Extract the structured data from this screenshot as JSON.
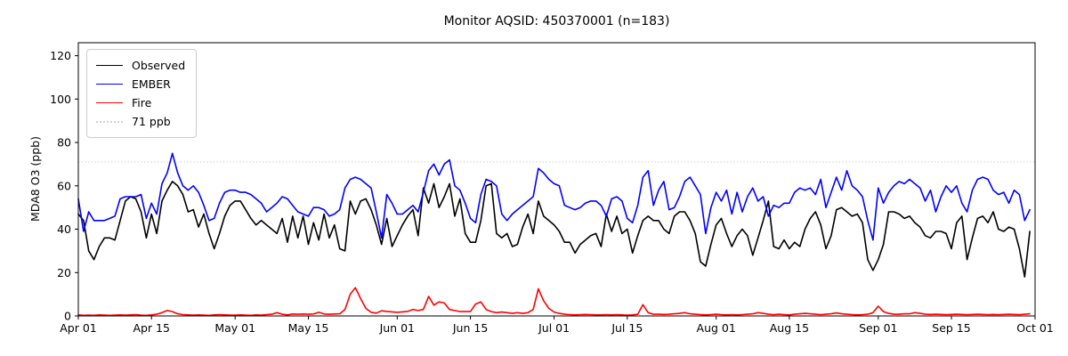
{
  "figure": {
    "title": "Monitor AQSID: 450370001 (n=183)",
    "background_color": "#ffffff",
    "axes_color": "#000000"
  },
  "chart_data": {
    "type": "line",
    "title": "Monitor AQSID: 450370001 (n=183)",
    "xlabel": "",
    "ylabel": "MDA8 O3 (ppb)",
    "ylim": [
      0,
      126
    ],
    "y_ticks": [
      0,
      20,
      40,
      60,
      80,
      100,
      120
    ],
    "x_tick_labels": [
      "Apr 01",
      "Apr 15",
      "May 01",
      "May 15",
      "Jun 01",
      "Jun 15",
      "Jul 01",
      "Jul 15",
      "Aug 01",
      "Aug 15",
      "Sep 01",
      "Sep 15",
      "Oct 01"
    ],
    "x_tick_day_offsets": [
      0,
      14,
      30,
      44,
      61,
      75,
      91,
      105,
      122,
      136,
      153,
      167,
      183
    ],
    "x_total_days": 183,
    "x_start_date": "Apr 01",
    "x_end_date": "Sep 30",
    "x_frequency": "daily",
    "n_points": 183,
    "grid": false,
    "legend_position": "upper left",
    "threshold": {
      "label": "71 ppb",
      "value": 71,
      "color": "#d3d3d3",
      "style": "dotted"
    },
    "legend": [
      {
        "label": "Observed",
        "color": "#000000",
        "style": "solid"
      },
      {
        "label": "EMBER",
        "color": "#0000ff",
        "style": "solid"
      },
      {
        "label": "Fire",
        "color": "#ff0000",
        "style": "solid"
      },
      {
        "label": "71 ppb",
        "color": "#d3d3d3",
        "style": "dotted"
      }
    ],
    "series": [
      {
        "name": "Observed",
        "color": "#000000",
        "values": [
          47,
          44,
          30,
          26,
          32,
          36,
          36,
          35,
          44,
          53,
          55,
          54,
          48,
          36,
          47,
          38,
          53,
          58,
          62,
          60,
          56,
          48,
          49,
          41,
          47,
          38,
          31,
          38,
          46,
          51,
          53,
          53,
          49,
          45,
          42,
          44,
          42,
          40,
          38,
          45,
          34,
          46,
          36,
          46,
          33,
          43,
          35,
          47,
          36,
          42,
          31,
          30,
          53,
          47,
          53,
          54,
          49,
          42,
          33,
          45,
          32,
          37,
          42,
          46,
          49,
          37,
          59,
          52,
          61,
          50,
          55,
          61,
          46,
          54,
          38,
          34,
          34,
          44,
          60,
          61,
          38,
          36,
          38,
          32,
          33,
          41,
          47,
          38,
          53,
          46,
          44,
          42,
          39,
          34,
          34,
          29,
          33,
          35,
          37,
          38,
          32,
          47,
          39,
          46,
          38,
          40,
          29,
          37,
          44,
          46,
          44,
          44,
          40,
          38,
          46,
          48,
          48,
          44,
          38,
          25,
          23,
          33,
          42,
          45,
          38,
          32,
          37,
          40,
          37,
          28,
          36,
          44,
          53,
          32,
          31,
          35,
          31,
          34,
          32,
          40,
          45,
          48,
          42,
          31,
          37,
          49,
          50,
          48,
          46,
          47,
          43,
          26,
          21,
          26,
          33,
          48,
          48,
          47,
          45,
          46,
          43,
          41,
          37,
          36,
          39,
          39,
          38,
          31,
          43,
          46,
          26,
          36,
          45,
          46,
          43,
          48,
          40,
          39,
          41,
          40,
          31,
          18,
          39
        ]
      },
      {
        "name": "EMBER",
        "color": "#0000ff",
        "values": [
          54,
          39,
          48,
          44,
          44,
          44,
          45,
          46,
          54,
          55,
          55,
          55,
          56,
          45,
          52,
          47,
          61,
          66,
          75,
          66,
          60,
          58,
          60,
          57,
          51,
          44,
          45,
          52,
          57,
          58,
          58,
          57,
          57,
          56,
          54,
          52,
          48,
          50,
          52,
          55,
          54,
          51,
          48,
          47,
          46,
          50,
          50,
          49,
          46,
          47,
          49,
          59,
          63,
          64,
          63,
          61,
          59,
          48,
          36,
          56,
          52,
          47,
          47,
          49,
          51,
          48,
          57,
          67,
          70,
          65,
          70,
          72,
          60,
          58,
          52,
          45,
          43,
          56,
          63,
          62,
          60,
          47,
          44,
          47,
          49,
          51,
          53,
          55,
          68,
          66,
          63,
          61,
          60,
          51,
          50,
          49,
          50,
          52,
          53,
          53,
          51,
          46,
          54,
          55,
          53,
          45,
          43,
          51,
          64,
          67,
          51,
          58,
          62,
          49,
          50,
          55,
          62,
          64,
          60,
          56,
          38,
          50,
          57,
          53,
          58,
          47,
          57,
          48,
          55,
          59,
          53,
          55,
          46,
          51,
          50,
          52,
          52,
          57,
          59,
          58,
          59,
          56,
          63,
          50,
          57,
          64,
          58,
          67,
          60,
          58,
          55,
          44,
          35,
          59,
          52,
          57,
          60,
          62,
          61,
          63,
          61,
          59,
          53,
          58,
          48,
          55,
          60,
          57,
          60,
          52,
          48,
          58,
          63,
          64,
          63,
          58,
          56,
          57,
          52,
          58,
          56,
          44,
          49
        ]
      },
      {
        "name": "Fire",
        "color": "#ff0000",
        "values": [
          0.5,
          0.3,
          0.4,
          0.3,
          0.5,
          0.4,
          0.3,
          0.4,
          0.5,
          0.4,
          0.5,
          0.6,
          0.4,
          0.3,
          0.5,
          0.8,
          1.5,
          2.5,
          2,
          1,
          0.6,
          0.5,
          0.4,
          0.5,
          0.4,
          0.3,
          0.5,
          0.6,
          0.5,
          0.4,
          0.4,
          0.5,
          0.4,
          0.3,
          0.5,
          0.4,
          0.6,
          0.8,
          1.5,
          0.8,
          0.5,
          0.9,
          0.8,
          0.9,
          0.8,
          0.9,
          1.7,
          0.9,
          0.8,
          0.9,
          1,
          3,
          10,
          13,
          8,
          3.5,
          1.7,
          1.3,
          2.4,
          2.1,
          1.9,
          1.7,
          1.9,
          2.1,
          3,
          2.5,
          3,
          9,
          5,
          6.5,
          6,
          3,
          2.5,
          2,
          2,
          2,
          5.5,
          6.5,
          3,
          2,
          1.5,
          1.8,
          1.5,
          1.2,
          1.5,
          1.2,
          1.5,
          3,
          12.5,
          7,
          3.5,
          1.8,
          1.2,
          0.8,
          0.6,
          0.5,
          0.6,
          0.7,
          0.6,
          0.5,
          0.5,
          0.6,
          0.5,
          0.6,
          0.5,
          0.4,
          0.5,
          0.8,
          5.2,
          1.5,
          0.8,
          0.8,
          0.7,
          0.8,
          1,
          1.2,
          1.5,
          1,
          0.8,
          0.6,
          0.5,
          0.6,
          0.8,
          0.6,
          0.5,
          0.6,
          0.5,
          0.6,
          0.8,
          1,
          1.5,
          1.2,
          0.8,
          0.6,
          0.8,
          0.6,
          0.5,
          0.8,
          1,
          1.2,
          1,
          0.8,
          0.6,
          0.8,
          1,
          1.4,
          1,
          0.8,
          0.6,
          0.5,
          0.6,
          0.8,
          1.5,
          4.5,
          2,
          1.2,
          0.8,
          0.8,
          1,
          1,
          1.5,
          1.2,
          0.8,
          0.7,
          0.8,
          0.7,
          0.6,
          0.7,
          0.8,
          0.7,
          0.6,
          0.7,
          0.8,
          0.7,
          0.6,
          0.7,
          0.6,
          0.7,
          0.8,
          0.7,
          0.6,
          0.8,
          1
        ]
      }
    ]
  }
}
